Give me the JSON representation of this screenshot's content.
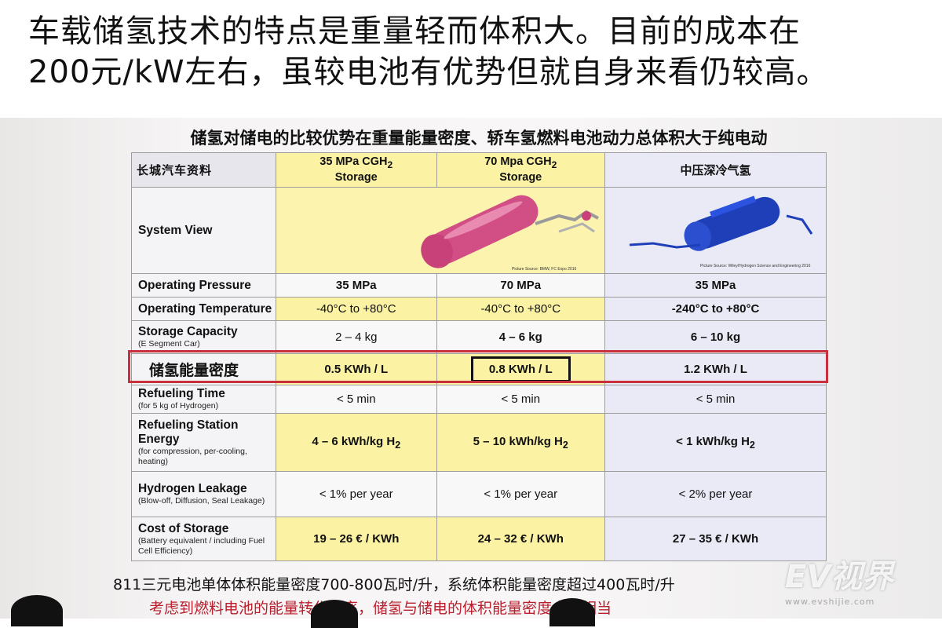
{
  "caption": {
    "line1": "车载储氢技术的特点是重量轻而体积大。目前的成本在",
    "line2": "200元/kW左右，虽较电池有优势但就自身来看仍较高。"
  },
  "slide": {
    "title": "储氢对储电的比较优势在重量能量密度、轿车氢燃料电池动力总体积大于纯电动",
    "brand": "长城汽车资料",
    "headers": {
      "col1": "35 MPa CGH",
      "col1_sub": "2",
      "col1_line2": "Storage",
      "col2": "70 Mpa CGH",
      "col2_sub": "2",
      "col2_line2": "Storage",
      "col3": "中压深冷气氢"
    },
    "system_view": {
      "label": "System View",
      "credit1": "Picture Source: BMW, FC Expo 2016",
      "credit3": "Picture Source: Wiley/Hydrogen Science and Engineering 2016"
    },
    "rows": [
      {
        "label": "Operating Pressure",
        "sub": "",
        "c1": "35 MPa",
        "c2": "70 MPa",
        "c3": "35 MPa"
      },
      {
        "label": "Operating Temperature",
        "sub": "",
        "c1": "-40°C to +80°C",
        "c2": "-40°C to +80°C",
        "c3": "-240°C to +80°C"
      },
      {
        "label": "Storage Capacity",
        "sub": "(E Segment Car)",
        "c1": "2 – 4 kg",
        "c2": "4 – 6 kg",
        "c3": "6 – 10 kg"
      },
      {
        "label": "储氢能量密度",
        "sub": "",
        "c1": "0.5 KWh / L",
        "c2": "0.8 KWh / L",
        "c3": "1.2 KWh / L"
      },
      {
        "label": "Refueling Time",
        "sub": "(for 5 kg of Hydrogen)",
        "c1": "< 5 min",
        "c2": "< 5 min",
        "c3": "< 5 min"
      },
      {
        "label": "Refueling Station Energy",
        "sub": "(for compression, per-cooling, heating)",
        "c1": "4 – 6 kWh/kg H",
        "c2": "5 – 10 kWh/kg H",
        "c3": "< 1 kWh/kg H",
        "h2sub": "2"
      },
      {
        "label": "Hydrogen Leakage",
        "sub": "(Blow-off, Diffusion, Seal Leakage)",
        "c1": "< 1% per year",
        "c2": "< 1% per year",
        "c3": "< 2% per year"
      },
      {
        "label": "Cost of Storage",
        "sub": "(Battery equivalent / including Fuel Cell Efficiency)",
        "c1": "19 – 26 € / KWh",
        "c2": "24 – 32 € / KWh",
        "c3": "27 – 35 € / KWh"
      }
    ]
  },
  "notes": {
    "line1": "811三元电池单体体积能量密度700-800瓦时/升，系统体积能量密度超过400瓦时/升",
    "line2": "考虑到燃料电池的能量转化效率，储氢与储电的体积能量密度大体相当"
  },
  "watermark": {
    "brand": "EV视界",
    "site": "www.evshijie.com"
  },
  "colors": {
    "yellow_cell": "#fbf2a3",
    "blue_cell": "#eaeaf6",
    "highlight_red": "#c8303c",
    "note_red": "#b8202e"
  }
}
